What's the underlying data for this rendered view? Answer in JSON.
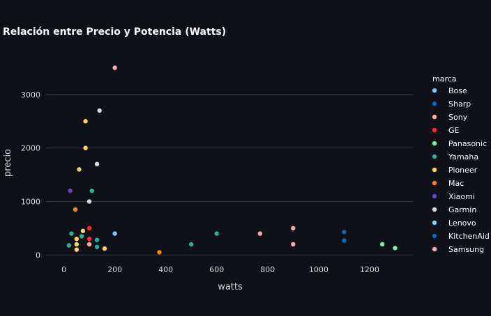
{
  "chart_data": {
    "type": "scatter",
    "title": "Relación entre Precio y Potencia (Watts)",
    "xlabel": "watts",
    "ylabel": "precio",
    "xlim": [
      -70,
      1370
    ],
    "ylim": [
      -230,
      3700
    ],
    "xticks": [
      0,
      200,
      400,
      600,
      800,
      1000,
      1200
    ],
    "yticks": [
      0,
      1000,
      2000,
      3000
    ],
    "grid": true,
    "legend_title": "marca",
    "legend_position": "right",
    "colors": {
      "background": "#0e1117",
      "grid": "#2e3440",
      "text": "#fafafa",
      "tick_text": "#d6d6d6"
    },
    "series": [
      {
        "name": "Bose",
        "color": "#83c9ff",
        "points": [
          [
            200,
            400
          ]
        ]
      },
      {
        "name": "Sharp",
        "color": "#0068c9",
        "points": [
          [
            1100,
            430
          ],
          [
            1100,
            270
          ]
        ]
      },
      {
        "name": "Sony",
        "color": "#ffabab",
        "points": [
          [
            770,
            400
          ],
          [
            900,
            500
          ],
          [
            900,
            200
          ]
        ]
      },
      {
        "name": "GE",
        "color": "#ff2b2b",
        "points": [
          [
            100,
            500
          ],
          [
            100,
            300
          ]
        ]
      },
      {
        "name": "Panasonic",
        "color": "#7defa1",
        "points": [
          [
            1250,
            200
          ],
          [
            1300,
            130
          ]
        ]
      },
      {
        "name": "Yamaha",
        "color": "#29b09d",
        "points": [
          [
            20,
            180
          ],
          [
            30,
            400
          ],
          [
            70,
            350
          ],
          [
            110,
            1200
          ],
          [
            130,
            280
          ],
          [
            130,
            150
          ],
          [
            500,
            200
          ],
          [
            600,
            400
          ]
        ]
      },
      {
        "name": "Pioneer",
        "color": "#ffd16a",
        "points": [
          [
            50,
            100
          ],
          [
            50,
            200
          ],
          [
            50,
            300
          ],
          [
            60,
            1600
          ],
          [
            75,
            450
          ],
          [
            85,
            2000
          ],
          [
            85,
            2500
          ],
          [
            160,
            120
          ]
        ]
      },
      {
        "name": "Mac",
        "color": "#ff8700",
        "points": [
          [
            45,
            850
          ],
          [
            375,
            50
          ]
        ]
      },
      {
        "name": "Xiaomi",
        "color": "#6d3fc0",
        "points": [
          [
            25,
            1200
          ]
        ]
      },
      {
        "name": "Garmin",
        "color": "#d5dae5",
        "points": [
          [
            100,
            1000
          ],
          [
            130,
            1700
          ],
          [
            140,
            2700
          ]
        ]
      },
      {
        "name": "Lenovo",
        "color": "#83c9ff",
        "points": []
      },
      {
        "name": "KitchenAid",
        "color": "#0068c9",
        "points": []
      },
      {
        "name": "Samsung",
        "color": "#ffabab",
        "points": [
          [
            100,
            200
          ],
          [
            200,
            3500
          ]
        ]
      }
    ]
  }
}
